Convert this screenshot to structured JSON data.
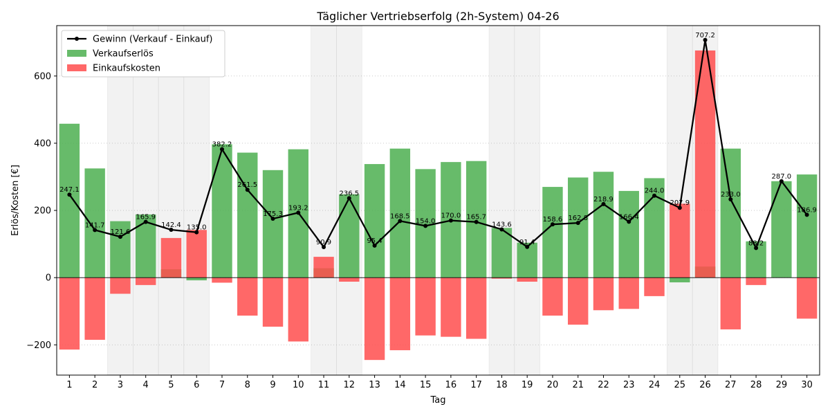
{
  "chart_data": {
    "type": "bar",
    "title": "Täglicher Vertriebserfolg (2h-System) 04-26",
    "xlabel": "Tag",
    "ylabel": "Erlös/Kosten [€]",
    "ylim": [
      -290,
      750
    ],
    "yticks": [
      -200,
      0,
      200,
      400,
      600
    ],
    "grid": "horizontal-dotted",
    "legend_position": "top-left",
    "categories": [
      "1",
      "2",
      "3",
      "4",
      "5",
      "6",
      "7",
      "8",
      "9",
      "10",
      "11",
      "12",
      "13",
      "14",
      "15",
      "16",
      "17",
      "18",
      "19",
      "20",
      "21",
      "22",
      "23",
      "24",
      "25",
      "26",
      "27",
      "28",
      "29",
      "30"
    ],
    "shaded_days": [
      "3",
      "4",
      "5",
      "6",
      "11",
      "12",
      "18",
      "19",
      "25",
      "26"
    ],
    "series": [
      {
        "name": "Gewinn (Verkauf - Einkauf)",
        "kind": "line",
        "color": "#000000",
        "values": [
          247.1,
          141.7,
          121.6,
          165.9,
          142.4,
          135.0,
          382.2,
          261.5,
          175.3,
          193.2,
          90.9,
          236.5,
          95.4,
          168.5,
          154.0,
          170.0,
          165.7,
          143.6,
          91.4,
          158.6,
          162.8,
          218.9,
          166.4,
          244.0,
          207.9,
          707.2,
          233.0,
          88.2,
          287.0,
          186.9
        ],
        "labels": [
          "247.1",
          "141.7",
          "121.6",
          "165.9",
          "142.4",
          "135.0",
          "382.2",
          "261.5",
          "175.3",
          "193.2",
          "90.9",
          "236.5",
          "95.4",
          "168.5",
          "154.0",
          "170.0",
          "165.7",
          "143.6",
          "91.4",
          "158.6",
          "162.8",
          "218.9",
          "166.4",
          "244.0",
          "207.9",
          "707.2",
          "233.0",
          "88.2",
          "287.0",
          "186.9"
        ]
      },
      {
        "name": "Verkaufserlös",
        "kind": "bar",
        "color": "#4caf50",
        "values": [
          458,
          325,
          168,
          188,
          25,
          -8,
          397,
          372,
          320,
          382,
          28,
          248,
          338,
          384,
          323,
          344,
          347,
          148,
          104,
          270,
          298,
          315,
          258,
          296,
          -14,
          33,
          384,
          108,
          287,
          307
        ]
      },
      {
        "name": "Einkaufskosten",
        "kind": "bar",
        "color": "#ff4d4d",
        "values": [
          -214,
          -185,
          -48,
          -22,
          118,
          142,
          -15,
          -113,
          -146,
          -190,
          62,
          -12,
          -245,
          -216,
          -172,
          -176,
          -182,
          -3,
          -12,
          -113,
          -140,
          -97,
          -93,
          -55,
          220,
          676,
          -154,
          -22,
          0,
          -122
        ]
      }
    ]
  }
}
